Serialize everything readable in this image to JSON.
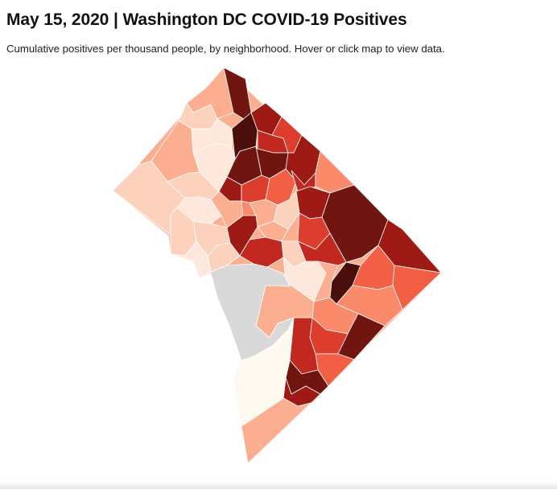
{
  "header": {
    "title": "May 15, 2020 | Washington DC COVID-19 Positives",
    "subtitle": "Cumulative positives per thousand people, by neighborhood. Hover or click map to view data."
  },
  "map": {
    "name": "Washington DC neighborhoods choropleth",
    "measure": "Cumulative positives per thousand people",
    "color_scale": {
      "no_data": "#d9d9d9",
      "lightest": "#fffaf0",
      "steps": [
        "#fee8dc",
        "#fcd2bd",
        "#fcae91",
        "#fb8a6a",
        "#f25f44",
        "#dc3d2d",
        "#c02820",
        "#9e1b15",
        "#701510",
        "#4a0f0a"
      ]
    },
    "regions": [
      {
        "name": "neighborhood-1",
        "color": "#701510"
      },
      {
        "name": "neighborhood-2",
        "color": "#fcae91"
      },
      {
        "name": "neighborhood-3",
        "color": "#fcd2bd"
      },
      {
        "name": "neighborhood-4",
        "color": "#fcae91"
      },
      {
        "name": "neighborhood-5",
        "color": "#fee8dc"
      },
      {
        "name": "neighborhood-6",
        "color": "#fcd2bd"
      },
      {
        "name": "neighborhood-7",
        "color": "#fee8dc"
      },
      {
        "name": "neighborhood-8",
        "color": "#fcd2bd"
      },
      {
        "name": "neighborhood-9",
        "color": "#fee8dc"
      },
      {
        "name": "neighborhood-10",
        "color": "#fcd2bd"
      },
      {
        "name": "neighborhood-11",
        "color": "#fcd2bd"
      },
      {
        "name": "neighborhood-12",
        "color": "#fee8dc"
      },
      {
        "name": "neighborhood-13",
        "color": "#fcd2bd"
      },
      {
        "name": "neighborhood-14",
        "color": "#4a0f0a"
      },
      {
        "name": "neighborhood-15",
        "color": "#9e1b15"
      },
      {
        "name": "neighborhood-16",
        "color": "#701510"
      },
      {
        "name": "neighborhood-17",
        "color": "#c02820"
      },
      {
        "name": "neighborhood-18",
        "color": "#dc3d2d"
      },
      {
        "name": "neighborhood-19",
        "color": "#701510"
      },
      {
        "name": "neighborhood-20",
        "color": "#9e1b15"
      },
      {
        "name": "neighborhood-21",
        "color": "#dc3d2d"
      },
      {
        "name": "neighborhood-22",
        "color": "#f25f44"
      },
      {
        "name": "neighborhood-23",
        "color": "#9e1b15"
      },
      {
        "name": "neighborhood-24",
        "color": "#c02820"
      },
      {
        "name": "neighborhood-25",
        "color": "#fb8a6a"
      },
      {
        "name": "neighborhood-26",
        "color": "#9e1b15"
      },
      {
        "name": "neighborhood-27",
        "color": "#fcae91"
      },
      {
        "name": "neighborhood-28",
        "color": "#fb8a6a"
      },
      {
        "name": "neighborhood-29",
        "color": "#fcae91"
      },
      {
        "name": "neighborhood-30",
        "color": "#fcd2bd"
      },
      {
        "name": "neighborhood-31",
        "color": "#9e1b15"
      },
      {
        "name": "neighborhood-32",
        "color": "#fcae91"
      },
      {
        "name": "neighborhood-33",
        "color": "#c02820"
      },
      {
        "name": "neighborhood-34",
        "color": "#dc3d2d"
      },
      {
        "name": "neighborhood-35",
        "color": "#701510"
      },
      {
        "name": "neighborhood-36",
        "color": "#c02820"
      },
      {
        "name": "neighborhood-37",
        "color": "#fcd2bd"
      },
      {
        "name": "neighborhood-38",
        "color": "#fee8dc"
      },
      {
        "name": "neighborhood-39",
        "color": "#4a0f0a"
      },
      {
        "name": "neighborhood-40",
        "color": "#fcae91"
      },
      {
        "name": "neighborhood-41",
        "color": "#f25f44"
      },
      {
        "name": "neighborhood-42",
        "color": "#f25f44"
      },
      {
        "name": "neighborhood-43",
        "color": "#fb8a6a"
      },
      {
        "name": "neighborhood-44",
        "color": "#fb8a6a"
      },
      {
        "name": "neighborhood-45",
        "color": "#701510"
      },
      {
        "name": "neighborhood-46",
        "color": "#dc3d2d"
      },
      {
        "name": "neighborhood-47",
        "color": "#9e1b15"
      },
      {
        "name": "neighborhood-48",
        "color": "#f25f44"
      },
      {
        "name": "neighborhood-49",
        "color": "#c02820"
      },
      {
        "name": "neighborhood-50",
        "color": "#701510"
      },
      {
        "name": "neighborhood-51",
        "color": "#9e1b15"
      },
      {
        "name": "neighborhood-52",
        "color": "#fcae91"
      },
      {
        "name": "neighborhood-53",
        "color": "#fffaf0"
      },
      {
        "name": "neighborhood-54",
        "color": "#fcae91"
      },
      {
        "name": "neighborhood-55",
        "color": "#d9d9d9"
      }
    ]
  }
}
